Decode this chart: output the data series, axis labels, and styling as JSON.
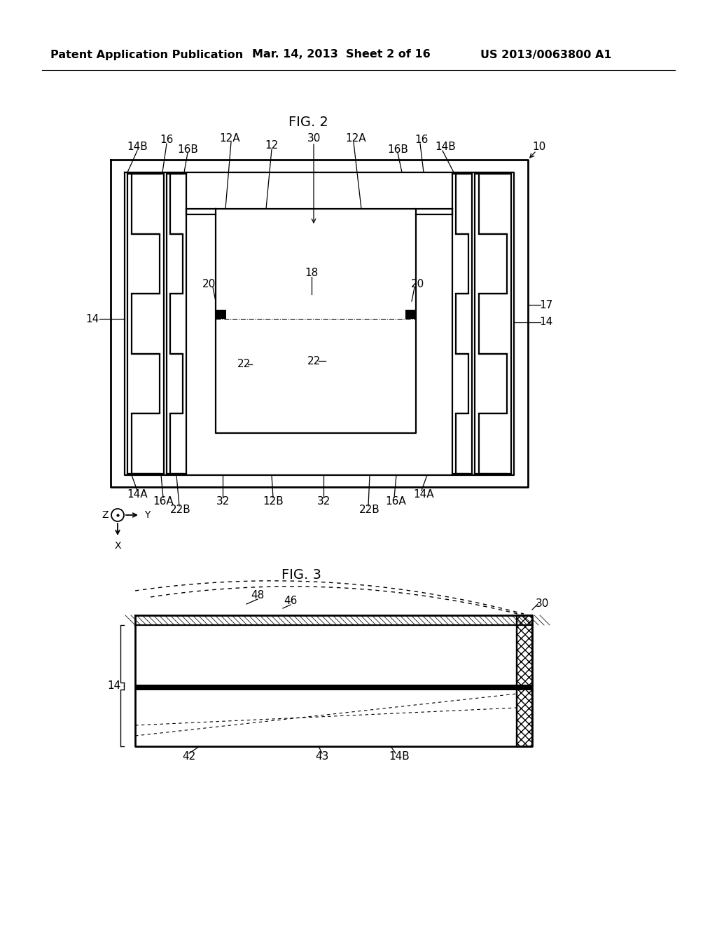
{
  "bg_color": "#ffffff",
  "header_left": "Patent Application Publication",
  "header_mid": "Mar. 14, 2013  Sheet 2 of 16",
  "header_right": "US 2013/0063800 A1",
  "fig2_title": "FIG. 2",
  "fig3_title": "FIG. 3",
  "label_fs": 11,
  "header_fs": 11.5,
  "title_fs": 14
}
